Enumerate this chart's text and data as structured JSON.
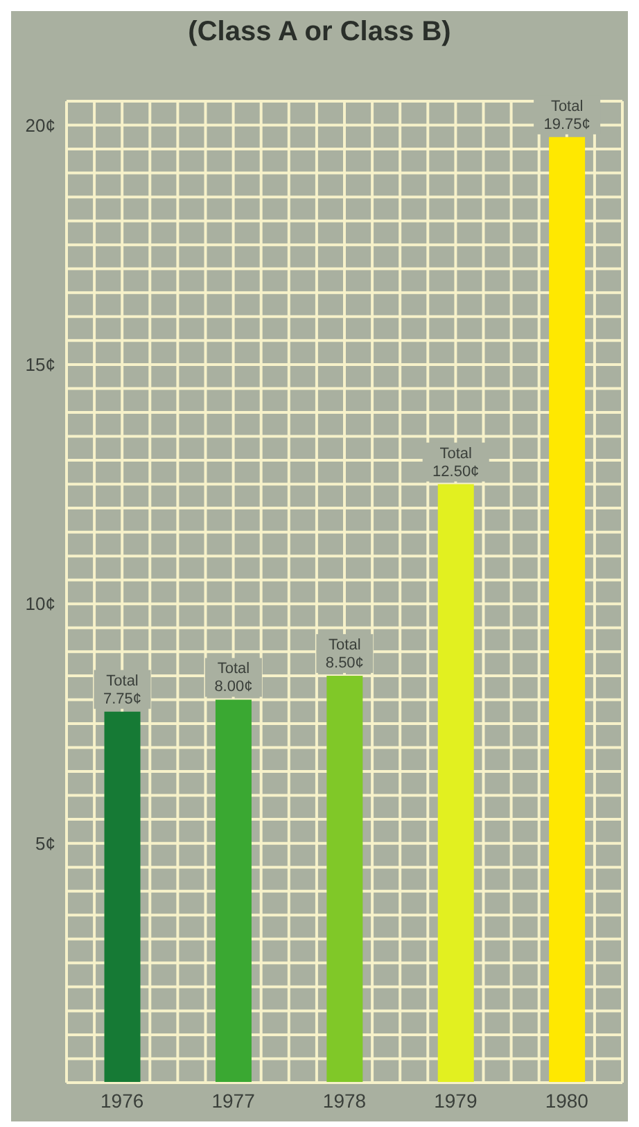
{
  "chart_data": {
    "type": "bar",
    "title": "(Class A or Class B)",
    "categories": [
      "1976",
      "1977",
      "1978",
      "1979",
      "1980"
    ],
    "values": [
      7.75,
      8.0,
      8.5,
      12.5,
      19.75
    ],
    "colors": [
      "#167a35",
      "#3aa832",
      "#80c828",
      "#e2f020",
      "#ffe800"
    ],
    "value_labels": [
      "Total 7.75¢",
      "Total 8.00¢",
      "Total 8.50¢",
      "Total 12.50¢",
      "Total 19.75¢"
    ],
    "ylim": [
      0,
      20.5
    ],
    "yticks": [
      {
        "value": 0.5,
        "label": null
      },
      {
        "value": 1,
        "label": null
      },
      {
        "value": 1.5,
        "label": null
      },
      {
        "value": 2,
        "label": null
      },
      {
        "value": 2.5,
        "label": null
      },
      {
        "value": 3,
        "label": null
      },
      {
        "value": 3.5,
        "label": null
      },
      {
        "value": 4,
        "label": null
      },
      {
        "value": 4.5,
        "label": null
      },
      {
        "value": 5,
        "label": "5¢"
      },
      {
        "value": 5.5,
        "label": null
      },
      {
        "value": 6,
        "label": null
      },
      {
        "value": 6.5,
        "label": null
      },
      {
        "value": 7,
        "label": null
      },
      {
        "value": 7.5,
        "label": null
      },
      {
        "value": 8,
        "label": null
      },
      {
        "value": 8.5,
        "label": null
      },
      {
        "value": 9,
        "label": null
      },
      {
        "value": 9.5,
        "label": null
      },
      {
        "value": 10,
        "label": "10¢"
      },
      {
        "value": 10.5,
        "label": null
      },
      {
        "value": 11,
        "label": null
      },
      {
        "value": 11.5,
        "label": null
      },
      {
        "value": 12,
        "label": null
      },
      {
        "value": 12.5,
        "label": null
      },
      {
        "value": 13,
        "label": null
      },
      {
        "value": 13.5,
        "label": null
      },
      {
        "value": 14,
        "label": null
      },
      {
        "value": 14.5,
        "label": null
      },
      {
        "value": 15,
        "label": "15¢"
      },
      {
        "value": 15.5,
        "label": null
      },
      {
        "value": 16,
        "label": null
      },
      {
        "value": 16.5,
        "label": null
      },
      {
        "value": 17,
        "label": null
      },
      {
        "value": 17.5,
        "label": null
      },
      {
        "value": 18,
        "label": null
      },
      {
        "value": 18.5,
        "label": null
      },
      {
        "value": 19,
        "label": null
      },
      {
        "value": 19.5,
        "label": null
      },
      {
        "value": 20,
        "label": "20¢"
      }
    ],
    "grid": true
  }
}
